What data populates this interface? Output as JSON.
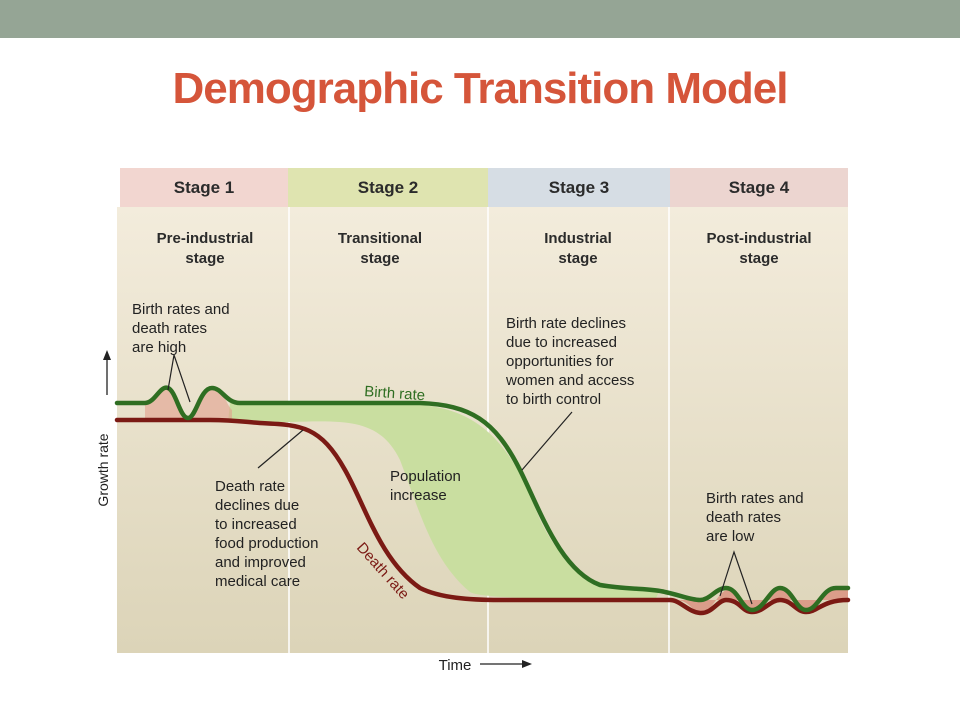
{
  "slide": {
    "title": "Demographic Transition Model"
  },
  "stages": [
    {
      "label": "Stage 1",
      "name_line1": "Pre-industrial",
      "name_line2": "stage",
      "color": "#f2d6d0"
    },
    {
      "label": "Stage 2",
      "name_line1": "Transitional",
      "name_line2": "stage",
      "color": "#dfe4b0"
    },
    {
      "label": "Stage 3",
      "name_line1": "Industrial",
      "name_line2": "stage",
      "color": "#d6dde4"
    },
    {
      "label": "Stage 4",
      "name_line1": "Post-industrial",
      "name_line2": "stage",
      "color": "#ecd5d0"
    }
  ],
  "axes": {
    "y_label": "Growth rate",
    "x_label": "Time"
  },
  "lines": {
    "birth_rate": {
      "label": "Birth rate",
      "color": "#2f6e22"
    },
    "death_rate": {
      "label": "Death rate",
      "color": "#7b1a14"
    }
  },
  "annotations": {
    "high_rates": [
      "Birth rates and",
      "death rates",
      "are high"
    ],
    "death_decline": [
      "Death rate",
      "declines due",
      "to increased",
      "food production",
      "and improved",
      "medical care"
    ],
    "population_increase": [
      "Population",
      "increase"
    ],
    "birth_decline": [
      "Birth rate declines",
      "due to increased",
      "opportunities for",
      "women and access",
      "to birth control"
    ],
    "low_rates": [
      "Birth rates and",
      "death rates",
      "are low"
    ]
  },
  "colors": {
    "title": "#d5553a",
    "top_bar": "#95a595",
    "population_fill": "#c9dea0"
  }
}
